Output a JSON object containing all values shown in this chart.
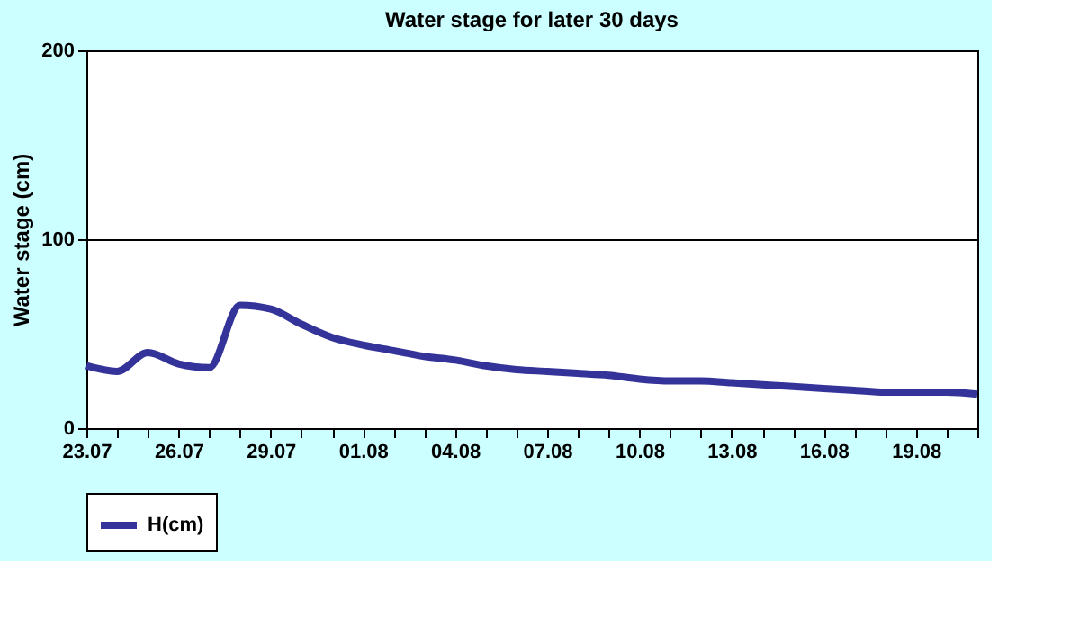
{
  "chart_data": {
    "type": "line",
    "title": "Water stage for later 30 days",
    "ylabel": "Water stage (cm)",
    "categories": [
      "23.07",
      null,
      null,
      "26.07",
      null,
      null,
      "29.07",
      null,
      null,
      "01.08",
      null,
      null,
      "04.08",
      null,
      null,
      "07.08",
      null,
      null,
      "10.08",
      null,
      null,
      "13.08",
      null,
      null,
      "16.08",
      null,
      null,
      "19.08",
      null,
      null
    ],
    "series": [
      {
        "name": "H(cm)",
        "color": "#333399",
        "values": [
          33,
          30,
          40,
          34,
          32,
          65,
          63,
          55,
          48,
          44,
          41,
          38,
          36,
          33,
          31,
          30,
          29,
          28,
          26,
          25,
          25,
          24,
          23,
          22,
          21,
          20,
          19,
          19,
          19,
          18
        ]
      }
    ],
    "ylim": [
      0,
      200
    ],
    "yticks": [
      0,
      100,
      200
    ],
    "grid": "y",
    "legend": "bottom",
    "marker": "none",
    "line_style": "solid"
  }
}
